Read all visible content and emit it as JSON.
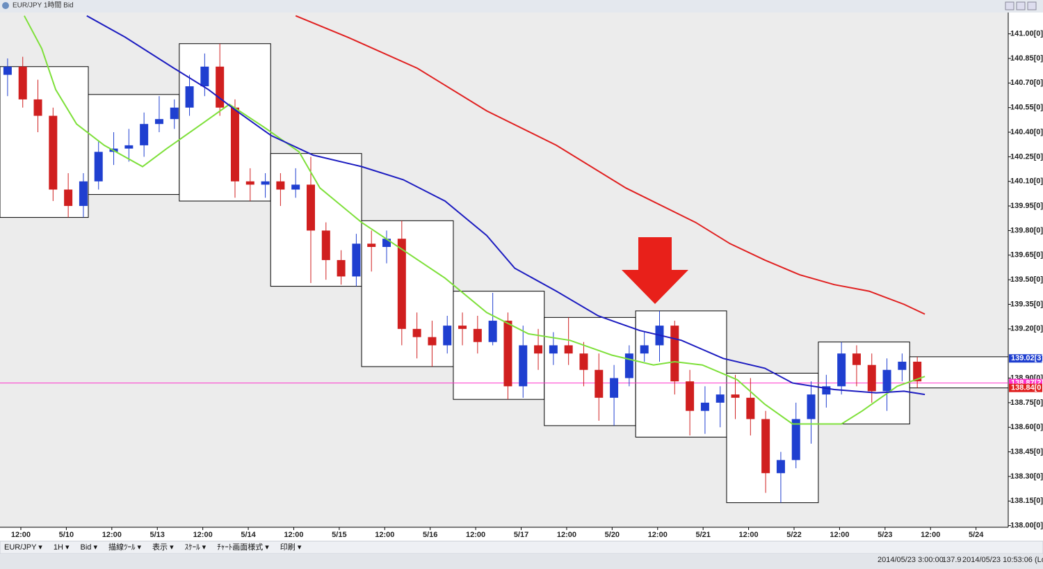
{
  "chart_data": {
    "type": "candlestick",
    "title": "EUR/JPY 1時間 Bid",
    "xlim": [
      0,
      266
    ],
    "xticks": [
      {
        "value": 5.5,
        "label": "12:00"
      },
      {
        "value": 17.5,
        "label": "5/10"
      },
      {
        "value": 29.5,
        "label": "12:00"
      },
      {
        "value": 41.5,
        "label": "5/13"
      },
      {
        "value": 53.5,
        "label": "12:00"
      },
      {
        "value": 65.5,
        "label": "5/14"
      },
      {
        "value": 77.5,
        "label": "12:00"
      },
      {
        "value": 89.5,
        "label": "5/15"
      },
      {
        "value": 101.5,
        "label": "12:00"
      },
      {
        "value": 113.5,
        "label": "5/16"
      },
      {
        "value": 125.5,
        "label": "12:00"
      },
      {
        "value": 137.5,
        "label": "5/17"
      },
      {
        "value": 149.5,
        "label": "12:00"
      },
      {
        "value": 161.5,
        "label": "5/20"
      },
      {
        "value": 173.5,
        "label": "12:00"
      },
      {
        "value": 185.5,
        "label": "5/21"
      },
      {
        "value": 197.5,
        "label": "12:00"
      },
      {
        "value": 209.5,
        "label": "5/22"
      },
      {
        "value": 221.5,
        "label": "12:00"
      },
      {
        "value": 233.5,
        "label": "5/23"
      },
      {
        "value": 245.5,
        "label": "12:00"
      },
      {
        "value": 257.5,
        "label": "5/24"
      }
    ],
    "ylim": [
      137.99,
      141.13
    ],
    "yticks": [
      {
        "value": 141.0,
        "label": "141.00[0]"
      },
      {
        "value": 140.85,
        "label": "140.85[0]"
      },
      {
        "value": 140.7,
        "label": "140.70[0]"
      },
      {
        "value": 140.55,
        "label": "140.55[0]"
      },
      {
        "value": 140.4,
        "label": "140.40[0]"
      },
      {
        "value": 140.25,
        "label": "140.25[0]"
      },
      {
        "value": 140.1,
        "label": "140.10[0]"
      },
      {
        "value": 139.95,
        "label": "139.95[0]"
      },
      {
        "value": 139.8,
        "label": "139.80[0]"
      },
      {
        "value": 139.65,
        "label": "139.65[0]"
      },
      {
        "value": 139.5,
        "label": "139.50[0]"
      },
      {
        "value": 139.35,
        "label": "139.35[0]"
      },
      {
        "value": 139.2,
        "label": "139.20[0]"
      },
      {
        "value": 138.9,
        "label": "138.90[0]"
      },
      {
        "value": 138.75,
        "label": "138.75[0]"
      },
      {
        "value": 138.6,
        "label": "138.60[0]"
      },
      {
        "value": 138.45,
        "label": "138.45[0]"
      },
      {
        "value": 138.3,
        "label": "138.30[0]"
      },
      {
        "value": 138.15,
        "label": "138.15[0]"
      },
      {
        "value": 138.0,
        "label": "138.00[0]"
      }
    ],
    "up_color": "#1f3fd0",
    "down_color": "#d01f1f",
    "x": [
      2,
      6,
      10,
      14,
      18,
      22,
      26,
      30,
      34,
      38,
      42,
      46,
      50,
      54,
      58,
      62,
      66,
      70,
      74,
      78,
      82,
      86,
      90,
      94,
      98,
      102,
      106,
      110,
      114,
      118,
      122,
      126,
      130,
      134,
      138,
      142,
      146,
      150,
      154,
      158,
      162,
      166,
      170,
      174,
      178,
      182,
      186,
      190,
      194,
      198,
      202,
      206,
      210,
      214,
      218,
      222,
      226,
      230,
      234,
      238,
      242
    ],
    "open": [
      140.75,
      140.8,
      140.6,
      140.5,
      140.05,
      139.95,
      140.1,
      140.28,
      140.3,
      140.32,
      140.45,
      140.48,
      140.55,
      140.68,
      140.8,
      140.55,
      140.1,
      140.08,
      140.1,
      140.05,
      140.08,
      139.8,
      139.62,
      139.52,
      139.72,
      139.7,
      139.75,
      139.2,
      139.15,
      139.1,
      139.22,
      139.2,
      139.12,
      139.25,
      138.85,
      139.1,
      139.05,
      139.1,
      139.05,
      138.95,
      138.78,
      138.9,
      139.05,
      139.1,
      139.22,
      138.88,
      138.7,
      138.75,
      138.8,
      138.78,
      138.65,
      138.32,
      138.4,
      138.65,
      138.8,
      138.85,
      139.05,
      138.98,
      138.82,
      138.95,
      139.0
    ],
    "high": [
      140.85,
      140.86,
      140.72,
      140.55,
      140.15,
      140.15,
      140.35,
      140.4,
      140.42,
      140.52,
      140.62,
      140.6,
      140.75,
      140.88,
      140.94,
      140.6,
      140.18,
      140.15,
      140.15,
      140.18,
      140.25,
      139.85,
      139.68,
      139.78,
      139.8,
      139.8,
      139.86,
      139.3,
      139.25,
      139.28,
      139.3,
      139.28,
      139.42,
      139.3,
      139.22,
      139.2,
      139.18,
      139.27,
      139.12,
      139.05,
      138.98,
      139.1,
      139.18,
      139.31,
      139.25,
      138.95,
      138.85,
      138.85,
      138.92,
      138.9,
      138.7,
      138.45,
      138.75,
      138.88,
      138.92,
      139.12,
      139.1,
      139.05,
      139.02,
      139.05,
      139.03
    ],
    "low": [
      140.62,
      140.55,
      140.4,
      139.98,
      139.88,
      139.88,
      140.05,
      140.2,
      140.22,
      140.25,
      140.4,
      140.42,
      140.5,
      140.62,
      140.5,
      140.0,
      139.98,
      140.0,
      139.95,
      140.0,
      139.48,
      139.5,
      139.47,
      139.46,
      139.55,
      139.6,
      139.1,
      139.02,
      138.97,
      139.05,
      139.1,
      139.05,
      139.1,
      138.77,
      138.78,
      138.95,
      138.98,
      138.98,
      138.85,
      138.64,
      138.61,
      138.85,
      139.0,
      139.0,
      138.8,
      138.55,
      138.56,
      138.6,
      138.65,
      138.55,
      138.2,
      138.14,
      138.35,
      138.5,
      138.72,
      138.8,
      138.85,
      138.75,
      138.7,
      138.88,
      138.84
    ],
    "close": [
      140.8,
      140.6,
      140.5,
      140.05,
      139.95,
      140.1,
      140.28,
      140.3,
      140.32,
      140.45,
      140.48,
      140.55,
      140.68,
      140.8,
      140.55,
      140.1,
      140.08,
      140.1,
      140.05,
      140.08,
      139.8,
      139.62,
      139.52,
      139.72,
      139.7,
      139.75,
      139.2,
      139.15,
      139.1,
      139.22,
      139.2,
      139.12,
      139.25,
      138.85,
      139.1,
      139.05,
      139.1,
      139.05,
      138.95,
      138.78,
      138.9,
      139.05,
      139.1,
      139.22,
      138.88,
      138.7,
      138.75,
      138.8,
      138.78,
      138.65,
      138.32,
      138.4,
      138.65,
      138.8,
      138.85,
      139.05,
      138.98,
      138.82,
      138.95,
      139.0,
      138.88
    ],
    "boxes": {
      "start": [
        0,
        23.3,
        47.3,
        71.4,
        95.4,
        119.6,
        143.6,
        167.7,
        191.7,
        215.9,
        240
      ],
      "end": [
        23.3,
        47.3,
        71.4,
        95.4,
        119.6,
        143.6,
        167.7,
        191.7,
        215.9,
        240,
        266
      ],
      "high": [
        140.8,
        140.63,
        140.94,
        140.27,
        139.86,
        139.43,
        139.27,
        139.31,
        138.93,
        139.12,
        139.03
      ],
      "low": [
        139.88,
        140.02,
        139.98,
        139.46,
        138.97,
        138.77,
        138.61,
        138.54,
        138.14,
        138.62,
        138.84
      ]
    },
    "lines": [
      {
        "color": "#7ee03a",
        "x": [
          6.4,
          11.0,
          14.7,
          20.2,
          27.5,
          37.6,
          44.0,
          53.2,
          60.5,
          69.7,
          78.9,
          84.4,
          95.4,
          106.4,
          117.4,
          128.4,
          139.4,
          150.4,
          161.4,
          172.4,
          178.0,
          185.3,
          194.5,
          201.8,
          209.1,
          222.0,
          227.5,
          236.7,
          244.0
        ],
        "values": [
          141.11,
          140.91,
          140.66,
          140.45,
          140.32,
          140.19,
          140.3,
          140.45,
          140.57,
          140.43,
          140.28,
          140.06,
          139.85,
          139.68,
          139.51,
          139.3,
          139.17,
          139.13,
          139.04,
          138.98,
          139.0,
          138.98,
          138.89,
          138.74,
          138.62,
          138.62,
          138.7,
          138.85,
          138.91
        ]
      },
      {
        "color": "#1c1cc0",
        "x": [
          22.9,
          33.0,
          45.9,
          55.0,
          62.4,
          71.5,
          82.6,
          95.4,
          106.4,
          117.4,
          128.4,
          135.8,
          146.8,
          157.8,
          168.8,
          179.8,
          190.8,
          201.8,
          209.1,
          220.1,
          231.1,
          238.5,
          244.0
        ],
        "values": [
          141.11,
          140.98,
          140.79,
          140.66,
          140.53,
          140.38,
          140.26,
          140.19,
          140.11,
          139.98,
          139.77,
          139.57,
          139.43,
          139.28,
          139.19,
          139.13,
          139.02,
          138.96,
          138.87,
          138.83,
          138.81,
          138.82,
          138.8
        ]
      },
      {
        "color": "#e02020",
        "x": [
          78.0,
          91.7,
          110.1,
          128.4,
          146.8,
          165.1,
          183.5,
          192.6,
          201.8,
          211.0,
          220.1,
          229.3,
          238.5,
          244.0
        ],
        "values": [
          141.11,
          140.98,
          140.79,
          140.53,
          140.32,
          140.06,
          139.85,
          139.72,
          139.62,
          139.53,
          139.47,
          139.43,
          139.35,
          139.29
        ]
      }
    ],
    "markers": [
      {
        "value": 139.02,
        "label": "139.02[3]",
        "color": "#1f3fd0",
        "line": false
      },
      {
        "value": 138.87,
        "label": "138.87[2]",
        "color": "#ff33cc",
        "line": true
      },
      {
        "value": 138.84,
        "label": "138.84[0",
        "color": "#e02020",
        "line": false
      }
    ]
  },
  "toolbar": [
    "EUR/JPY ▾",
    "1H ▾",
    "Bid ▾",
    "描線ﾂｰﾙ ▾",
    "表示 ▾",
    "ｽｹｰﾙ ▾",
    "ﾁｬｰﾄ画面様式 ▾",
    "印刷 ▾"
  ],
  "status": [
    "2014/05/23 3:00:00",
    "137.9",
    "2014/05/23 10:53:06 (Lo"
  ]
}
